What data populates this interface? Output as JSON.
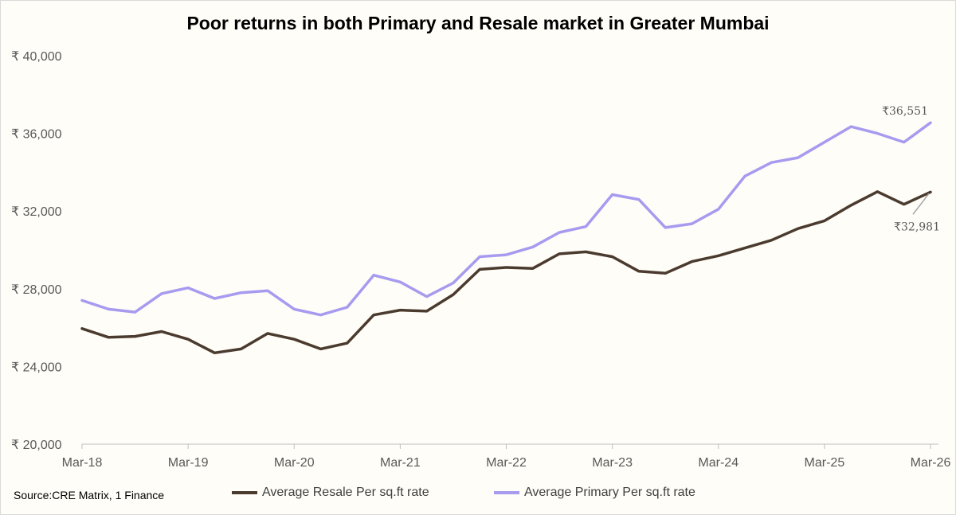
{
  "title": "Poor returns in both Primary and Resale market in Greater Mumbai",
  "source": "Source:CRE Matrix, 1 Finance",
  "chart_data": {
    "type": "line",
    "title": "Poor returns in both Primary and Resale market in Greater Mumbai",
    "ylim": [
      20000,
      40000
    ],
    "yticks": [
      {
        "value": 20000,
        "label": "₹ 20,000"
      },
      {
        "value": 24000,
        "label": "₹ 24,000"
      },
      {
        "value": 28000,
        "label": "₹ 28,000"
      },
      {
        "value": 32000,
        "label": "₹ 32,000"
      },
      {
        "value": 36000,
        "label": "₹ 36,000"
      },
      {
        "value": 40000,
        "label": "₹ 40,000"
      }
    ],
    "xticks": [
      {
        "index": 0,
        "label": "Mar-18"
      },
      {
        "index": 4,
        "label": "Mar-19"
      },
      {
        "index": 8,
        "label": "Mar-20"
      },
      {
        "index": 12,
        "label": "Mar-21"
      },
      {
        "index": 16,
        "label": "Mar-22"
      },
      {
        "index": 20,
        "label": "Mar-23"
      },
      {
        "index": 24,
        "label": "Mar-24"
      },
      {
        "index": 28,
        "label": "Mar-25"
      },
      {
        "index": 32,
        "label": "Mar-26"
      }
    ],
    "x_count": 33,
    "series": [
      {
        "name": "Average Resale Per sq.ft rate",
        "color": "#4a3b2e",
        "values": [
          25950,
          25500,
          25550,
          25800,
          25400,
          24700,
          24900,
          25700,
          25400,
          24900,
          25200,
          26650,
          26900,
          26850,
          27700,
          29000,
          29100,
          29050,
          29800,
          29900,
          29650,
          28900,
          28800,
          29400,
          29700,
          30100,
          30500,
          31100,
          31500,
          32300,
          33000,
          32350,
          32981
        ],
        "end_label": "₹32,981"
      },
      {
        "name": "Average Primary Per sq.ft rate",
        "color": "#a79bf0",
        "values": [
          27400,
          26950,
          26800,
          27750,
          28050,
          27500,
          27800,
          27900,
          26950,
          26650,
          27050,
          28700,
          28350,
          27600,
          28300,
          29650,
          29750,
          30150,
          30900,
          31200,
          32850,
          32600,
          31150,
          31350,
          32100,
          33800,
          34500,
          34750,
          35550,
          36350,
          36000,
          35550,
          36551
        ],
        "end_label": "₹36,551"
      }
    ],
    "legend": "bottom"
  }
}
